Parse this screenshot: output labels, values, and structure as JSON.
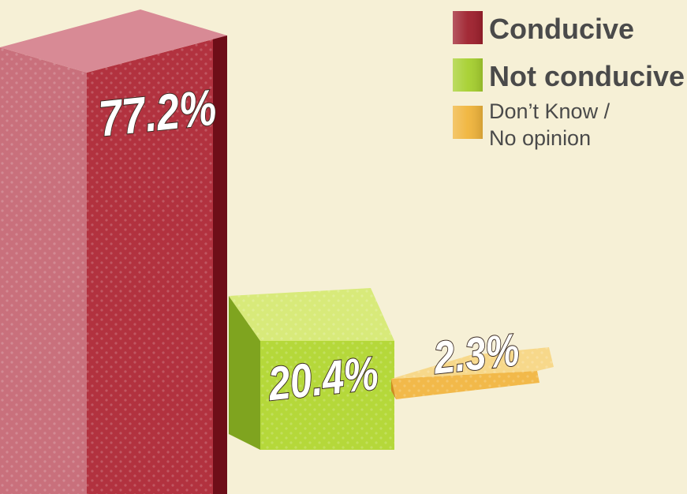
{
  "chart_data": {
    "type": "bar",
    "title": "",
    "xlabel": "",
    "ylabel": "",
    "ylim": [
      0,
      100
    ],
    "grid": false,
    "legend_position": "top-right",
    "categories": [
      "Conducive",
      "Not conducive",
      "Don’t Know / No opinion"
    ],
    "values": [
      77.2,
      20.4,
      2.3
    ],
    "value_labels": [
      "77.2%",
      "20.4%",
      "2.3%"
    ],
    "legend": [
      {
        "line1": "Conducive",
        "line2": "",
        "color": "#9e1f2c"
      },
      {
        "line1": "Not conducive",
        "line2": "",
        "color": "#a6d02e"
      },
      {
        "line1": "Don’t Know /",
        "line2": "No opinion",
        "color": "#f0b43a"
      }
    ],
    "colors": {
      "front": [
        "#b2323f",
        "#b5d83a",
        "#f2b94a"
      ],
      "top": [
        "#c9707c",
        "#d8ea7a",
        "#f7d88a"
      ],
      "side": [
        "#6e0e18",
        "#7fa41f",
        "#cf8a22"
      ],
      "background": "#f6f0d6"
    }
  }
}
